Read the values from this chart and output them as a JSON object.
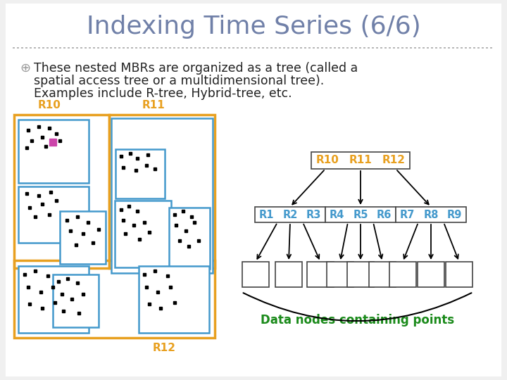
{
  "title": "Indexing Time Series (6/6)",
  "title_color": "#7080a8",
  "title_fontsize": 26,
  "bg_color": "#f0f0f0",
  "slide_bg": "#f4f4f4",
  "bullet_text_line1": "These nested MBRs are organized as a tree (called a",
  "bullet_text_line2": "spatial access tree or a multidimensional tree).",
  "bullet_text_line3": "Examples include R-tree, Hybrid-tree, etc.",
  "bullet_color": "#222222",
  "bullet_fontsize": 12.5,
  "orange_color": "#e8a020",
  "blue_color": "#4499cc",
  "green_color": "#1a8a1a",
  "black_color": "#111111",
  "r10_label": "R10",
  "r11_label": "R11",
  "r12_label": "R12",
  "tree_mid_labels": [
    [
      "R1",
      "R2",
      "R3"
    ],
    [
      "R4",
      "R5",
      "R6"
    ],
    [
      "R7",
      "R8",
      "R9"
    ]
  ],
  "data_nodes_label": "Data nodes containing points"
}
